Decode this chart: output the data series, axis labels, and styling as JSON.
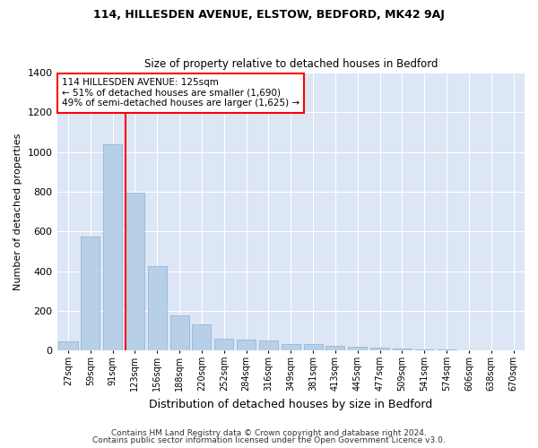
{
  "title1": "114, HILLESDEN AVENUE, ELSTOW, BEDFORD, MK42 9AJ",
  "title2": "Size of property relative to detached houses in Bedford",
  "xlabel": "Distribution of detached houses by size in Bedford",
  "ylabel": "Number of detached properties",
  "bar_color": "#b8cfe8",
  "bar_edge_color": "#8aafd0",
  "bg_color": "#dce6f5",
  "grid_color": "#ffffff",
  "fig_bg": "#ffffff",
  "categories": [
    "27sqm",
    "59sqm",
    "91sqm",
    "123sqm",
    "156sqm",
    "188sqm",
    "220sqm",
    "252sqm",
    "284sqm",
    "316sqm",
    "349sqm",
    "381sqm",
    "413sqm",
    "445sqm",
    "477sqm",
    "509sqm",
    "541sqm",
    "574sqm",
    "606sqm",
    "638sqm",
    "670sqm"
  ],
  "values": [
    45,
    575,
    1040,
    795,
    425,
    175,
    130,
    60,
    55,
    50,
    30,
    30,
    25,
    20,
    15,
    10,
    5,
    3,
    2,
    1,
    1
  ],
  "property_line_label1": "114 HILLESDEN AVENUE: 125sqm",
  "property_line_label2": "← 51% of detached houses are smaller (1,690)",
  "property_line_label3": "49% of semi-detached houses are larger (1,625) →",
  "ylim": [
    0,
    1400
  ],
  "yticks": [
    0,
    200,
    400,
    600,
    800,
    1000,
    1200,
    1400
  ],
  "footer1": "Contains HM Land Registry data © Crown copyright and database right 2024.",
  "footer2": "Contains public sector information licensed under the Open Government Licence v3.0."
}
